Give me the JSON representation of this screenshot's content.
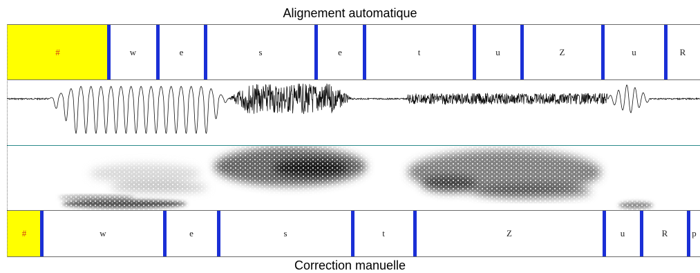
{
  "top_title": "Alignement automatique",
  "bottom_title": "Correction manuelle",
  "colors": {
    "pause": "#ffff00",
    "boundary": "#1a2fd6",
    "pause_text": "#d23b14"
  },
  "auto_tier": [
    {
      "label": "#",
      "start": 0,
      "end": 147,
      "pause": true
    },
    {
      "label": "w",
      "start": 147,
      "end": 218
    },
    {
      "label": "e",
      "start": 218,
      "end": 287
    },
    {
      "label": "s",
      "start": 287,
      "end": 447
    },
    {
      "label": "e",
      "start": 447,
      "end": 517
    },
    {
      "label": "t",
      "start": 517,
      "end": 676
    },
    {
      "label": "u",
      "start": 676,
      "end": 745
    },
    {
      "label": "Z",
      "start": 745,
      "end": 862
    },
    {
      "label": "u",
      "start": 862,
      "end": 953
    },
    {
      "label": "R",
      "start": 953,
      "end": 1003
    }
  ],
  "manual_tier": [
    {
      "label": "#",
      "start": 0,
      "end": 50,
      "pause": true
    },
    {
      "label": "w",
      "start": 50,
      "end": 228
    },
    {
      "label": "e",
      "start": 228,
      "end": 306
    },
    {
      "label": "s",
      "start": 306,
      "end": 500
    },
    {
      "label": "t",
      "start": 500,
      "end": 590
    },
    {
      "label": "Z",
      "start": 590,
      "end": 864
    },
    {
      "label": "u",
      "start": 864,
      "end": 918
    },
    {
      "label": "R",
      "start": 918,
      "end": 986
    },
    {
      "label": "p",
      "start": 986,
      "end": 1003
    }
  ]
}
